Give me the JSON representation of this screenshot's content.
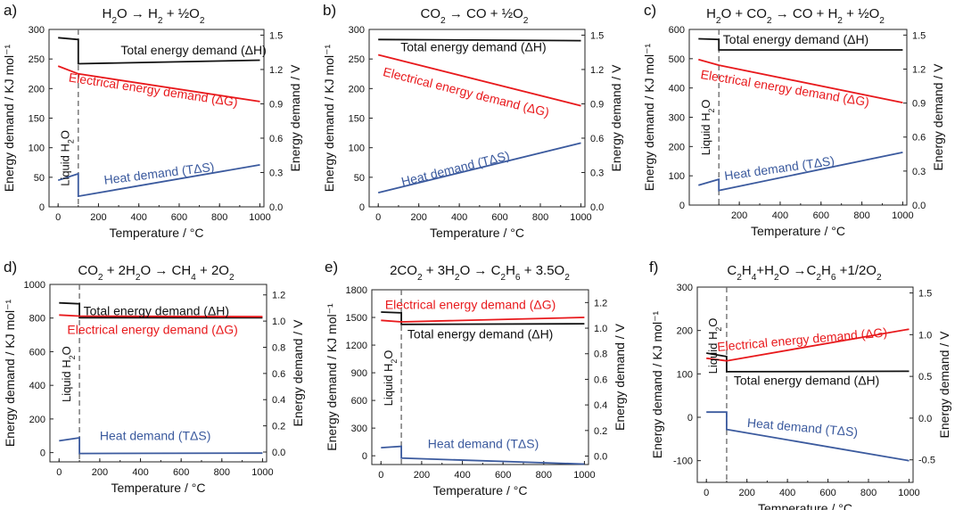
{
  "colors": {
    "black": "#111111",
    "red": "#e8191c",
    "blue": "#3b5a9e",
    "dash": "#666666"
  },
  "chart_data": [
    {
      "panel": "a)",
      "title": [
        {
          "t": "H"
        },
        {
          "t": "2",
          "sub": true
        },
        {
          "t": "O → H"
        },
        {
          "t": "2",
          "sub": true
        },
        {
          "t": " + ½O"
        },
        {
          "t": "2",
          "sub": true
        }
      ],
      "type": "line",
      "xlabel": "Temperature / °C",
      "ylabel": "Energy demand / KJ mol⁻¹",
      "y2label": "Energy demand / V",
      "xlim": [
        -45,
        1020
      ],
      "ylim": [
        0,
        300
      ],
      "y2lim": [
        0,
        1.55
      ],
      "xticks": [
        0,
        200,
        400,
        600,
        800,
        1000
      ],
      "yticks": [
        0,
        50,
        100,
        150,
        200,
        250,
        300
      ],
      "y2ticks": [
        0.0,
        0.3,
        0.6,
        0.9,
        1.2,
        1.5
      ],
      "liquid_water_boundary": 100,
      "series": [
        {
          "name": "Total energy demand (ΔH)",
          "color": "black",
          "x": [
            0,
            100,
            100,
            1000
          ],
          "y": [
            286,
            283,
            242,
            248
          ]
        },
        {
          "name": "Electrical energy demand (ΔG)",
          "color": "red",
          "x": [
            0,
            100,
            1000
          ],
          "y": [
            238,
            225,
            178
          ]
        },
        {
          "name": "Heat demand (TΔS)",
          "color": "blue",
          "x": [
            0,
            100,
            100,
            1000
          ],
          "y": [
            45,
            56,
            18,
            71
          ]
        }
      ],
      "annotations": [
        {
          "text": "Total energy demand (ΔH)",
          "x": 310,
          "y": 258,
          "color": "black"
        },
        {
          "text": "Electrical energy demand (ΔG)",
          "x": 50,
          "y": 212,
          "color": "red",
          "angle": 8.5
        },
        {
          "text": "Heat demand (TΔS)",
          "x": 230,
          "y": 38,
          "color": "blue",
          "angle": -7
        },
        {
          "text": [
            {
              "t": "Liquid H"
            },
            {
              "t": "2",
              "sub": true
            },
            {
              "t": "O"
            }
          ],
          "x": 55,
          "y": 35,
          "color": "black",
          "angle": -90
        }
      ]
    },
    {
      "panel": "b)",
      "title": [
        {
          "t": "CO"
        },
        {
          "t": "2",
          "sub": true
        },
        {
          "t": " → CO + ½O"
        },
        {
          "t": "2",
          "sub": true
        }
      ],
      "type": "line",
      "xlabel": "Temperature / °C",
      "ylabel": "Energy demand / KJ mol⁻¹",
      "y2label": "Energy demand / V",
      "xlim": [
        -45,
        1020
      ],
      "ylim": [
        0,
        300
      ],
      "y2lim": [
        0,
        1.55
      ],
      "xticks": [
        0,
        200,
        400,
        600,
        800,
        1000
      ],
      "yticks": [
        0,
        50,
        100,
        150,
        200,
        250,
        300
      ],
      "y2ticks": [
        0.0,
        0.3,
        0.6,
        0.9,
        1.2,
        1.5
      ],
      "series": [
        {
          "name": "Total energy demand (ΔH)",
          "color": "black",
          "x": [
            0,
            1000
          ],
          "y": [
            283,
            281
          ]
        },
        {
          "name": "Electrical energy demand (ΔG)",
          "color": "red",
          "x": [
            0,
            1000
          ],
          "y": [
            257,
            171
          ]
        },
        {
          "name": "Heat demand (TΔS)",
          "color": "blue",
          "x": [
            0,
            1000
          ],
          "y": [
            24,
            108
          ]
        }
      ],
      "annotations": [
        {
          "text": "Total energy demand (ΔH)",
          "x": 110,
          "y": 263,
          "color": "black"
        },
        {
          "text": "Electrical energy demand (ΔG)",
          "x": 20,
          "y": 222,
          "color": "red",
          "angle": 14
        },
        {
          "text": "Heat demand (TΔS)",
          "x": 120,
          "y": 35,
          "color": "blue",
          "angle": -14
        }
      ]
    },
    {
      "panel": "c)",
      "title": [
        {
          "t": "H"
        },
        {
          "t": "2",
          "sub": true
        },
        {
          "t": "O + CO"
        },
        {
          "t": "2",
          "sub": true
        },
        {
          "t": " → CO + H"
        },
        {
          "t": "2",
          "sub": true
        },
        {
          "t": " + ½O"
        },
        {
          "t": "2",
          "sub": true
        }
      ],
      "type": "line",
      "xlabel": "Temperature / °C",
      "ylabel": "Energy demand / KJ mol⁻¹",
      "y2label": "Energy demand / V",
      "xlim": [
        -45,
        1020
      ],
      "ylim": [
        0,
        600
      ],
      "y2lim": [
        0,
        1.55
      ],
      "xticks": [
        200,
        400,
        600,
        800,
        1000
      ],
      "yticks": [
        0,
        100,
        200,
        300,
        400,
        500,
        600
      ],
      "y2ticks": [
        0.0,
        0.3,
        0.6,
        0.9,
        1.2,
        1.5
      ],
      "liquid_water_boundary": 100,
      "series": [
        {
          "name": "Total energy demand (ΔH)",
          "color": "black",
          "x": [
            0,
            100,
            100,
            1000
          ],
          "y": [
            568,
            566,
            530,
            530
          ]
        },
        {
          "name": "Electrical energy demand (ΔG)",
          "color": "red",
          "x": [
            0,
            100,
            1000
          ],
          "y": [
            497,
            478,
            350
          ]
        },
        {
          "name": "Heat demand (TΔS)",
          "color": "blue",
          "x": [
            0,
            100,
            100,
            1000
          ],
          "y": [
            68,
            88,
            50,
            180
          ]
        }
      ],
      "annotations": [
        {
          "text": "Total energy demand (ΔH)",
          "x": 120,
          "y": 552,
          "color": "black"
        },
        {
          "text": "Electrical energy demand (ΔG)",
          "x": 8,
          "y": 433,
          "color": "red",
          "angle": 9.5
        },
        {
          "text": "Heat demand (TΔS)",
          "x": 130,
          "y": 85,
          "color": "blue",
          "angle": -8
        },
        {
          "text": [
            {
              "t": "Liquid H"
            },
            {
              "t": "2",
              "sub": true
            },
            {
              "t": "O"
            }
          ],
          "x": 55,
          "y": 170,
          "color": "black",
          "angle": -90
        }
      ]
    },
    {
      "panel": "d)",
      "title": [
        {
          "t": "CO"
        },
        {
          "t": "2",
          "sub": true
        },
        {
          "t": " + 2H"
        },
        {
          "t": "2",
          "sub": true
        },
        {
          "t": "O → CH"
        },
        {
          "t": "4",
          "sub": true
        },
        {
          "t": " + 2O"
        },
        {
          "t": "2",
          "sub": true
        }
      ],
      "type": "line",
      "xlabel": "Temperature / °C",
      "ylabel": "Energy demand / KJ mol⁻¹",
      "y2label": "Energy demand / V",
      "xlim": [
        -45,
        1020
      ],
      "ylim": [
        -55,
        1000
      ],
      "y2lim": [
        -0.075,
        1.28
      ],
      "xticks": [
        0,
        200,
        400,
        600,
        800,
        1000
      ],
      "yticks": [
        0,
        200,
        400,
        600,
        800,
        1000
      ],
      "y2ticks": [
        0.0,
        0.2,
        0.4,
        0.6,
        0.8,
        1.0,
        1.2
      ],
      "liquid_water_boundary": 100,
      "series": [
        {
          "name": "Total energy demand (ΔH)",
          "color": "black",
          "x": [
            0,
            100,
            100,
            1000
          ],
          "y": [
            890,
            885,
            802,
            802
          ]
        },
        {
          "name": "Electrical energy demand (ΔG)",
          "color": "red",
          "x": [
            0,
            100,
            1000
          ],
          "y": [
            818,
            812,
            808
          ]
        },
        {
          "name": "Heat demand (TΔS)",
          "color": "blue",
          "x": [
            0,
            100,
            100,
            1000
          ],
          "y": [
            70,
            88,
            -5,
            -3
          ]
        }
      ],
      "annotations": [
        {
          "text": "Total energy demand (ΔH)",
          "x": 120,
          "y": 818,
          "color": "black"
        },
        {
          "text": "Electrical energy demand (ΔG)",
          "x": 40,
          "y": 705,
          "color": "red"
        },
        {
          "text": "Heat demand (TΔS)",
          "x": 200,
          "y": 75,
          "color": "blue"
        },
        {
          "text": [
            {
              "t": "Liquid H"
            },
            {
              "t": "2",
              "sub": true
            },
            {
              "t": "O"
            }
          ],
          "x": 55,
          "y": 300,
          "color": "black",
          "angle": -90
        }
      ]
    },
    {
      "panel": "e)",
      "title": [
        {
          "t": "2CO"
        },
        {
          "t": "2",
          "sub": true
        },
        {
          "t": " + 3H"
        },
        {
          "t": "2",
          "sub": true
        },
        {
          "t": "O → C"
        },
        {
          "t": "2",
          "sub": true
        },
        {
          "t": "H"
        },
        {
          "t": "6",
          "sub": true
        },
        {
          "t": " + 3.5O"
        },
        {
          "t": "2",
          "sub": true
        }
      ],
      "type": "line",
      "xlabel": "Temperature / °C",
      "ylabel": "Energy demand / KJ mol⁻¹",
      "y2label": "Energy demand / V",
      "xlim": [
        -45,
        1020
      ],
      "ylim": [
        -95,
        1800
      ],
      "y2lim": [
        -0.066,
        1.3
      ],
      "xticks": [
        0,
        200,
        400,
        600,
        800,
        1000
      ],
      "yticks": [
        0,
        300,
        600,
        900,
        1200,
        1500,
        1800
      ],
      "y2ticks": [
        0.0,
        0.2,
        0.4,
        0.6,
        0.8,
        1.0,
        1.2
      ],
      "liquid_water_boundary": 100,
      "series": [
        {
          "name": "Total energy demand (ΔH)",
          "color": "black",
          "x": [
            0,
            100,
            100,
            1000
          ],
          "y": [
            1558,
            1550,
            1425,
            1432
          ]
        },
        {
          "name": "Electrical energy demand (ΔG)",
          "color": "red",
          "x": [
            0,
            100,
            1000
          ],
          "y": [
            1468,
            1452,
            1500
          ]
        },
        {
          "name": "Heat demand (TΔS)",
          "color": "blue",
          "x": [
            0,
            100,
            100,
            1000
          ],
          "y": [
            88,
            102,
            -25,
            -90
          ]
        }
      ],
      "annotations": [
        {
          "text": "Electrical energy demand (ΔG)",
          "x": 20,
          "y": 1590,
          "color": "red"
        },
        {
          "text": "Total energy demand (ΔH)",
          "x": 130,
          "y": 1275,
          "color": "black"
        },
        {
          "text": "Heat demand (TΔS)",
          "x": 230,
          "y": 85,
          "color": "blue"
        },
        {
          "text": [
            {
              "t": "Liquid H"
            },
            {
              "t": "2",
              "sub": true
            },
            {
              "t": "O"
            }
          ],
          "x": 55,
          "y": 540,
          "color": "black",
          "angle": -90
        }
      ]
    },
    {
      "panel": "f)",
      "title": [
        {
          "t": "C"
        },
        {
          "t": "2",
          "sub": true
        },
        {
          "t": "H"
        },
        {
          "t": "4",
          "sub": true
        },
        {
          "t": "+H"
        },
        {
          "t": "2",
          "sub": true
        },
        {
          "t": "O →C"
        },
        {
          "t": "2",
          "sub": true
        },
        {
          "t": "H"
        },
        {
          "t": "6",
          "sub": true
        },
        {
          "t": " +1/2O"
        },
        {
          "t": "2",
          "sub": true
        }
      ],
      "type": "line",
      "xlabel": "Temperature / °C",
      "ylabel": "Energy demand / KJ mol⁻¹",
      "y2label": "Energy demand / V",
      "xlim": [
        -45,
        1020
      ],
      "ylim": [
        -150,
        300
      ],
      "y2lim": [
        -0.77,
        1.57
      ],
      "xticks": [
        0,
        200,
        400,
        600,
        800,
        1000
      ],
      "yticks": [
        -100,
        0,
        100,
        200,
        300
      ],
      "y2ticks": [
        -0.5,
        0.0,
        0.5,
        1.0,
        1.5
      ],
      "liquid_water_boundary": 100,
      "series": [
        {
          "name": "Total energy demand (ΔH)",
          "color": "black",
          "x": [
            0,
            100,
            100,
            1000
          ],
          "y": [
            148,
            140,
            105,
            106
          ]
        },
        {
          "name": "Electrical energy demand (ΔG)",
          "color": "red",
          "x": [
            0,
            100,
            1000
          ],
          "y": [
            136,
            130,
            203
          ]
        },
        {
          "name": "Heat demand (TΔS)",
          "color": "blue",
          "x": [
            0,
            100,
            100,
            1000
          ],
          "y": [
            12,
            12,
            -28,
            -100
          ]
        }
      ],
      "annotations": [
        {
          "text": "Electrical energy demand (ΔG)",
          "x": 55,
          "y": 152,
          "color": "red",
          "angle": -5
        },
        {
          "text": "Total energy demand (ΔH)",
          "x": 135,
          "y": 75,
          "color": "black"
        },
        {
          "text": "Heat demand (TΔS)",
          "x": 200,
          "y": -22,
          "color": "blue",
          "angle": 5
        },
        {
          "text": [
            {
              "t": "Liquid H"
            },
            {
              "t": "2",
              "sub": true
            },
            {
              "t": "O"
            }
          ],
          "x": 52,
          "y": 100,
          "color": "black",
          "angle": -90
        }
      ]
    }
  ]
}
